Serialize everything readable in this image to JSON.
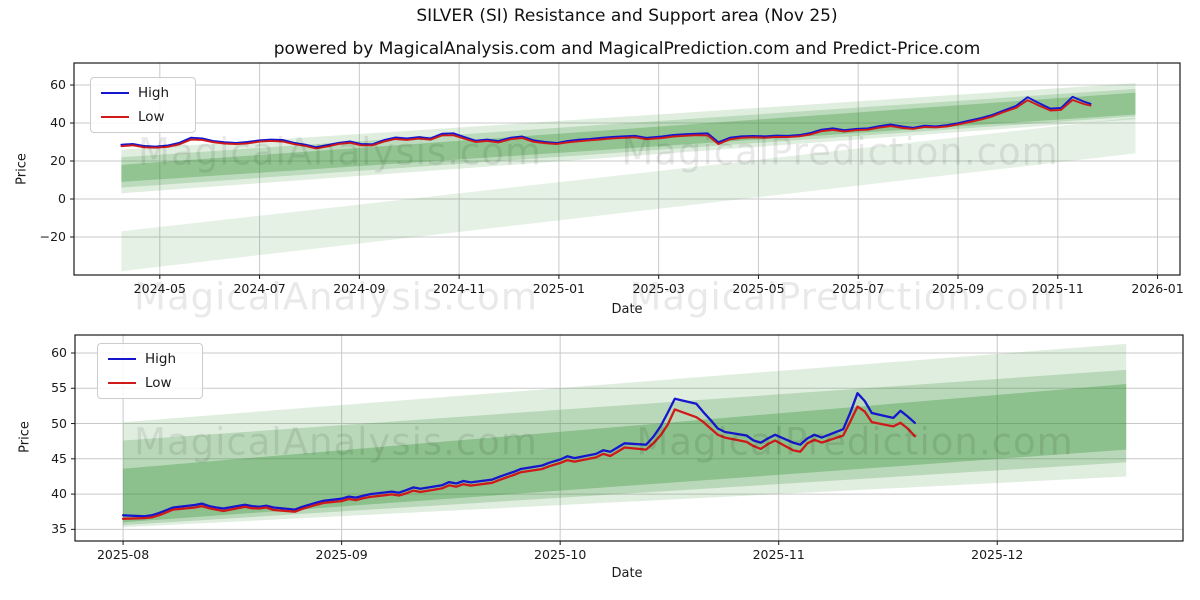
{
  "header": {
    "title": "SILVER (SI) Resistance and Support area (Nov 25)",
    "subtitle": "powered by MagicalAnalysis.com and MagicalPrediction.com and Predict-Price.com"
  },
  "watermarks": {
    "left": "MagicalAnalysis.com",
    "right": "MagicalPrediction.com"
  },
  "legend": {
    "high_label": "High",
    "low_label": "Low"
  },
  "colors": {
    "high": "#1616cf",
    "low": "#cf1a1a",
    "band": "#2f8f2f",
    "grid": "#c9c9c9",
    "spine": "#1a1a1a",
    "tick": "#1a1a1a"
  },
  "chart_data": [
    {
      "type": "line",
      "title": "SILVER (SI) Resistance and Support area (Nov 25)",
      "xlabel": "Date",
      "ylabel": "Price",
      "grid": true,
      "legend_position": "upper left",
      "legend_entries": [
        "High",
        "Low"
      ],
      "series_names": [
        "High",
        "Low"
      ],
      "xlim_months": [
        2.28,
        24.45
      ],
      "ylim": [
        -40,
        71.6
      ],
      "line_width": 1.9,
      "x_ticks": [
        {
          "m": 4,
          "label": "2024-05"
        },
        {
          "m": 6,
          "label": "2024-07"
        },
        {
          "m": 8,
          "label": "2024-09"
        },
        {
          "m": 10,
          "label": "2024-11"
        },
        {
          "m": 12,
          "label": "2025-01"
        },
        {
          "m": 14,
          "label": "2025-03"
        },
        {
          "m": 16,
          "label": "2025-05"
        },
        {
          "m": 18,
          "label": "2025-07"
        },
        {
          "m": 20,
          "label": "2025-09"
        },
        {
          "m": 22,
          "label": "2025-11"
        },
        {
          "m": 24,
          "label": "2026-01"
        }
      ],
      "y_ticks": [
        -20,
        0,
        20,
        40,
        60
      ],
      "bands": [
        {
          "x0": "2024-04-08",
          "x1": "2025-12-18",
          "bottom": [
            -38,
            24
          ],
          "top": [
            -17,
            43
          ],
          "opacity": 0.12
        },
        {
          "x0": "2024-04-08",
          "x1": "2025-12-18",
          "bottom": [
            3,
            42
          ],
          "top": [
            26,
            61
          ],
          "opacity": 0.15
        },
        {
          "x0": "2024-04-08",
          "x1": "2025-12-18",
          "bottom": [
            6,
            43.5
          ],
          "top": [
            22,
            58
          ],
          "opacity": 0.2
        },
        {
          "x0": "2024-04-08",
          "x1": "2025-12-18",
          "bottom": [
            9,
            44.5
          ],
          "top": [
            18,
            56
          ],
          "opacity": 0.3
        }
      ],
      "points": [
        [
          "2024-04-08",
          28.6,
          27.8
        ],
        [
          "2024-04-15",
          29.0,
          28.3
        ],
        [
          "2024-04-22",
          27.9,
          27.2
        ],
        [
          "2024-04-29",
          27.6,
          27.0
        ],
        [
          "2024-05-06",
          28.2,
          27.5
        ],
        [
          "2024-05-13",
          29.6,
          28.8
        ],
        [
          "2024-05-20",
          32.3,
          31.3
        ],
        [
          "2024-05-27",
          31.9,
          31.1
        ],
        [
          "2024-06-03",
          30.6,
          29.9
        ],
        [
          "2024-06-10",
          29.9,
          29.2
        ],
        [
          "2024-06-17",
          29.5,
          28.9
        ],
        [
          "2024-06-24",
          30.0,
          29.3
        ],
        [
          "2024-07-01",
          30.9,
          30.2
        ],
        [
          "2024-07-08",
          31.3,
          30.6
        ],
        [
          "2024-07-15",
          31.1,
          30.3
        ],
        [
          "2024-07-22",
          29.6,
          28.9
        ],
        [
          "2024-07-29",
          28.6,
          27.9
        ],
        [
          "2024-08-05",
          27.3,
          26.6
        ],
        [
          "2024-08-12",
          28.4,
          27.7
        ],
        [
          "2024-08-19",
          29.6,
          29.0
        ],
        [
          "2024-08-26",
          30.3,
          29.6
        ],
        [
          "2024-09-02",
          29.0,
          28.3
        ],
        [
          "2024-09-09",
          28.8,
          28.2
        ],
        [
          "2024-09-16",
          31.0,
          30.2
        ],
        [
          "2024-09-23",
          32.4,
          31.6
        ],
        [
          "2024-09-30",
          31.9,
          31.1
        ],
        [
          "2024-10-07",
          32.6,
          31.8
        ],
        [
          "2024-10-14",
          31.9,
          31.2
        ],
        [
          "2024-10-21",
          34.4,
          33.5
        ],
        [
          "2024-10-28",
          34.6,
          33.6
        ],
        [
          "2024-11-04",
          32.7,
          31.8
        ],
        [
          "2024-11-11",
          30.7,
          30.0
        ],
        [
          "2024-11-18",
          31.3,
          30.6
        ],
        [
          "2024-11-25",
          30.5,
          29.8
        ],
        [
          "2024-12-02",
          32.3,
          31.5
        ],
        [
          "2024-12-09",
          32.9,
          32.1
        ],
        [
          "2024-12-16",
          30.9,
          30.1
        ],
        [
          "2024-12-23",
          30.0,
          29.4
        ],
        [
          "2024-12-30",
          29.5,
          28.9
        ],
        [
          "2025-01-06",
          30.5,
          29.8
        ],
        [
          "2025-01-13",
          31.2,
          30.4
        ],
        [
          "2025-01-20",
          31.6,
          30.9
        ],
        [
          "2025-01-27",
          32.2,
          31.4
        ],
        [
          "2025-02-03",
          32.7,
          31.9
        ],
        [
          "2025-02-10",
          33.0,
          32.2
        ],
        [
          "2025-02-17",
          33.3,
          32.5
        ],
        [
          "2025-02-24",
          32.2,
          31.5
        ],
        [
          "2025-03-03",
          32.9,
          32.1
        ],
        [
          "2025-03-10",
          33.7,
          32.9
        ],
        [
          "2025-03-17",
          34.1,
          33.3
        ],
        [
          "2025-03-24",
          34.4,
          33.6
        ],
        [
          "2025-03-31",
          34.6,
          33.5
        ],
        [
          "2025-04-07",
          29.9,
          28.9
        ],
        [
          "2025-04-14",
          32.3,
          31.4
        ],
        [
          "2025-04-21",
          33.0,
          32.2
        ],
        [
          "2025-04-28",
          33.2,
          32.5
        ],
        [
          "2025-05-05",
          33.0,
          32.3
        ],
        [
          "2025-05-12",
          33.4,
          32.7
        ],
        [
          "2025-05-19",
          33.3,
          32.6
        ],
        [
          "2025-05-26",
          33.7,
          33.0
        ],
        [
          "2025-06-02",
          34.7,
          33.9
        ],
        [
          "2025-06-09",
          36.5,
          35.7
        ],
        [
          "2025-06-16",
          37.2,
          36.4
        ],
        [
          "2025-06-23",
          36.2,
          35.5
        ],
        [
          "2025-06-30",
          36.9,
          36.2
        ],
        [
          "2025-07-07",
          37.2,
          36.5
        ],
        [
          "2025-07-14",
          38.4,
          37.6
        ],
        [
          "2025-07-21",
          39.2,
          38.4
        ],
        [
          "2025-07-28",
          38.2,
          37.4
        ],
        [
          "2025-08-04",
          37.5,
          36.9
        ],
        [
          "2025-08-11",
          38.6,
          37.9
        ],
        [
          "2025-08-18",
          38.3,
          37.7
        ],
        [
          "2025-08-25",
          38.9,
          38.2
        ],
        [
          "2025-09-01",
          39.9,
          39.2
        ],
        [
          "2025-09-08",
          41.3,
          40.5
        ],
        [
          "2025-09-15",
          42.6,
          41.8
        ],
        [
          "2025-09-22",
          44.3,
          43.5
        ],
        [
          "2025-09-29",
          46.6,
          45.8
        ],
        [
          "2025-10-06",
          49.0,
          48.0
        ],
        [
          "2025-10-13",
          53.6,
          52.0
        ],
        [
          "2025-10-20",
          50.5,
          49.2
        ],
        [
          "2025-10-27",
          47.6,
          46.6
        ],
        [
          "2025-11-03",
          47.9,
          46.9
        ],
        [
          "2025-11-10",
          53.8,
          52.1
        ],
        [
          "2025-11-17",
          51.3,
          50.0
        ],
        [
          "2025-11-21",
          50.1,
          49.2
        ]
      ]
    },
    {
      "type": "line",
      "title": "",
      "xlabel": "Date",
      "ylabel": "Price",
      "grid": true,
      "legend_position": "upper left",
      "legend_entries": [
        "High",
        "Low"
      ],
      "series_names": [
        "High",
        "Low"
      ],
      "xlim_months": [
        18.78,
        23.85
      ],
      "ylim": [
        33.35,
        62.55
      ],
      "line_width": 2.3,
      "x_ticks": [
        {
          "m": 19,
          "label": "2025-08"
        },
        {
          "m": 20,
          "label": "2025-09"
        },
        {
          "m": 21,
          "label": "2025-10"
        },
        {
          "m": 22,
          "label": "2025-11"
        },
        {
          "m": 23,
          "label": "2025-12"
        }
      ],
      "y_ticks": [
        35,
        40,
        45,
        50,
        55,
        60
      ],
      "bands": [
        {
          "x0": "2025-08-01",
          "x1": "2025-12-19",
          "bottom": [
            35.3,
            42.5
          ],
          "top": [
            50.2,
            61.3
          ],
          "opacity": 0.15
        },
        {
          "x0": "2025-08-01",
          "x1": "2025-12-19",
          "bottom": [
            35.6,
            44.5
          ],
          "top": [
            47.6,
            57.6
          ],
          "opacity": 0.22
        },
        {
          "x0": "2025-08-01",
          "x1": "2025-12-19",
          "bottom": [
            36.0,
            46.3
          ],
          "top": [
            43.6,
            55.6
          ],
          "opacity": 0.32
        }
      ],
      "points": [
        [
          "2025-08-01",
          37.0,
          36.5
        ],
        [
          "2025-08-04",
          36.85,
          36.6
        ],
        [
          "2025-08-05",
          37.0,
          36.7
        ],
        [
          "2025-08-06",
          37.3,
          37.0
        ],
        [
          "2025-08-07",
          37.7,
          37.4
        ],
        [
          "2025-08-08",
          38.1,
          37.8
        ],
        [
          "2025-08-11",
          38.45,
          38.1
        ],
        [
          "2025-08-12",
          38.65,
          38.3
        ],
        [
          "2025-08-13",
          38.3,
          38.0
        ],
        [
          "2025-08-14",
          38.1,
          37.8
        ],
        [
          "2025-08-15",
          37.95,
          37.6
        ],
        [
          "2025-08-18",
          38.5,
          38.2
        ],
        [
          "2025-08-19",
          38.3,
          38.0
        ],
        [
          "2025-08-20",
          38.2,
          37.95
        ],
        [
          "2025-08-21",
          38.35,
          38.1
        ],
        [
          "2025-08-22",
          38.1,
          37.75
        ],
        [
          "2025-08-25",
          37.8,
          37.5
        ],
        [
          "2025-08-26",
          38.2,
          37.9
        ],
        [
          "2025-08-27",
          38.5,
          38.2
        ],
        [
          "2025-08-28",
          38.8,
          38.5
        ],
        [
          "2025-08-29",
          39.05,
          38.75
        ],
        [
          "2025-09-01",
          39.35,
          39.0
        ],
        [
          "2025-09-02",
          39.65,
          39.3
        ],
        [
          "2025-09-03",
          39.5,
          39.15
        ],
        [
          "2025-09-04",
          39.75,
          39.4
        ],
        [
          "2025-09-05",
          40.0,
          39.6
        ],
        [
          "2025-09-08",
          40.35,
          39.95
        ],
        [
          "2025-09-09",
          40.2,
          39.8
        ],
        [
          "2025-09-10",
          40.55,
          40.1
        ],
        [
          "2025-09-11",
          40.95,
          40.5
        ],
        [
          "2025-09-12",
          40.75,
          40.3
        ],
        [
          "2025-09-15",
          41.25,
          40.8
        ],
        [
          "2025-09-16",
          41.7,
          41.25
        ],
        [
          "2025-09-17",
          41.5,
          41.05
        ],
        [
          "2025-09-18",
          41.85,
          41.4
        ],
        [
          "2025-09-19",
          41.65,
          41.2
        ],
        [
          "2025-09-22",
          42.05,
          41.6
        ],
        [
          "2025-09-23",
          42.45,
          42.0
        ],
        [
          "2025-09-24",
          42.8,
          42.35
        ],
        [
          "2025-09-25",
          43.15,
          42.7
        ],
        [
          "2025-09-26",
          43.55,
          43.1
        ],
        [
          "2025-09-29",
          44.05,
          43.55
        ],
        [
          "2025-09-30",
          44.45,
          43.95
        ],
        [
          "2025-10-01",
          44.9,
          44.4
        ],
        [
          "2025-10-02",
          45.35,
          44.8
        ],
        [
          "2025-10-03",
          45.1,
          44.6
        ],
        [
          "2025-10-06",
          45.7,
          45.2
        ],
        [
          "2025-10-07",
          46.2,
          45.7
        ],
        [
          "2025-10-08",
          46.0,
          45.4
        ],
        [
          "2025-10-09",
          46.6,
          46.0
        ],
        [
          "2025-10-10",
          47.2,
          46.6
        ],
        [
          "2025-10-13",
          47.0,
          46.3
        ],
        [
          "2025-10-14",
          48.1,
          47.2
        ],
        [
          "2025-10-15",
          49.6,
          48.3
        ],
        [
          "2025-10-16",
          51.5,
          49.8
        ],
        [
          "2025-10-17",
          53.5,
          52.0
        ],
        [
          "2025-10-20",
          52.8,
          50.9
        ],
        [
          "2025-10-21",
          51.6,
          50.2
        ],
        [
          "2025-10-22",
          50.5,
          49.3
        ],
        [
          "2025-10-23",
          49.3,
          48.4
        ],
        [
          "2025-10-24",
          48.8,
          48.0
        ],
        [
          "2025-10-27",
          48.3,
          47.4
        ],
        [
          "2025-10-28",
          47.6,
          46.8
        ],
        [
          "2025-10-29",
          47.3,
          46.4
        ],
        [
          "2025-10-30",
          47.9,
          47.1
        ],
        [
          "2025-10-31",
          48.4,
          47.6
        ],
        [
          "2025-11-03",
          47.3,
          46.2
        ],
        [
          "2025-11-04",
          47.0,
          46.0
        ],
        [
          "2025-11-05",
          47.9,
          47.2
        ],
        [
          "2025-11-06",
          48.4,
          47.7
        ],
        [
          "2025-11-07",
          48.0,
          47.3
        ],
        [
          "2025-11-10",
          49.2,
          48.3
        ],
        [
          "2025-11-11",
          51.6,
          50.3
        ],
        [
          "2025-11-12",
          54.3,
          52.4
        ],
        [
          "2025-11-13",
          53.2,
          51.7
        ],
        [
          "2025-11-14",
          51.5,
          50.2
        ],
        [
          "2025-11-17",
          50.8,
          49.6
        ],
        [
          "2025-11-18",
          51.8,
          50.1
        ],
        [
          "2025-11-19",
          51.0,
          49.3
        ],
        [
          "2025-11-20",
          50.1,
          48.2
        ]
      ]
    }
  ]
}
